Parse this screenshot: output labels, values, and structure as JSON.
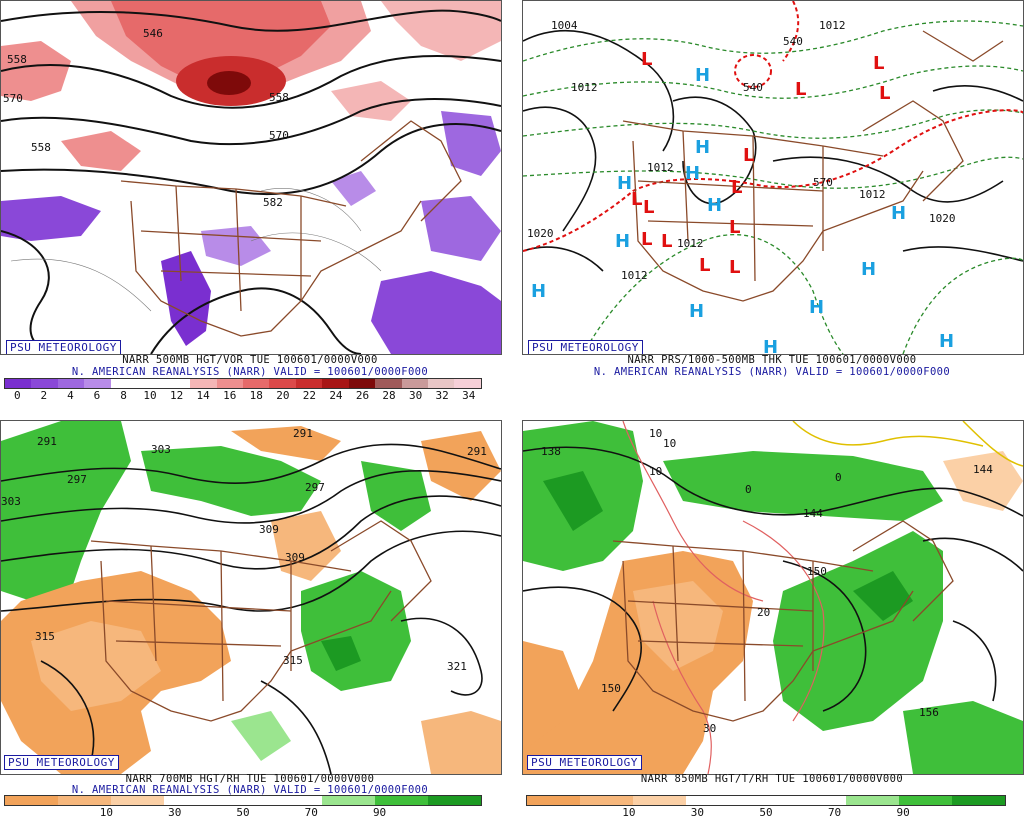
{
  "panels": [
    {
      "id": "p500",
      "badge": "PSU METEOROLOGY",
      "caption1": "NARR 500MB HGT/VOR TUE 100601/0000V000",
      "caption2": "N. AMERICAN REANALYSIS (NARR) VALID = 100601/0000F000",
      "contour_labels": [
        "558",
        "546",
        "558",
        "570",
        "582",
        "570",
        "558"
      ],
      "colorbar": {
        "colors": [
          "#7a2fd0",
          "#8a48d8",
          "#9e68e0",
          "#b88ce8",
          "#ffffff",
          "#ffffff",
          "#ffffff",
          "#f4b6b6",
          "#ee8f8f",
          "#e66a6a",
          "#dc4a4a",
          "#c92d2d",
          "#a81515",
          "#7e0a0a",
          "#a05a5a",
          "#c99a9a",
          "#e8c6c6",
          "#f6d0d8"
        ],
        "ticks": [
          "0",
          "2",
          "4",
          "6",
          "8",
          "10",
          "12",
          "14",
          "16",
          "18",
          "20",
          "22",
          "24",
          "26",
          "28",
          "30",
          "32",
          "34"
        ]
      }
    },
    {
      "id": "pprs",
      "badge": "PSU METEOROLOGY",
      "caption1": "NARR PRS/1000-500MB THK TUE 100601/0000V000",
      "caption2": "N. AMERICAN REANALYSIS (NARR) VALID = 100601/0000F000",
      "contour_labels": [
        "1004",
        "1012",
        "1012",
        "1012",
        "1012",
        "1020",
        "1020",
        "1012",
        "1012",
        "540",
        "540",
        "570"
      ],
      "highs": 13,
      "lows": 13,
      "high_label": "H",
      "low_label": "L"
    },
    {
      "id": "p700",
      "badge": "PSU METEOROLOGY",
      "caption1": "NARR 700MB HGT/RH TUE 100601/0000V000",
      "caption2": "N. AMERICAN REANALYSIS (NARR) VALID = 100601/0000F000",
      "contour_labels": [
        "291",
        "303",
        "297",
        "291",
        "297",
        "309",
        "303",
        "309",
        "315",
        "315",
        "321",
        "291"
      ],
      "colorbar": {
        "colors": [
          "#f2a35a",
          "#f6b77c",
          "#fbd0a6",
          "#ffffff",
          "#ffffff",
          "#ffffff",
          "#9be58f",
          "#3fbf3a",
          "#1c9a22"
        ],
        "ticks": [
          "10",
          "30",
          "50",
          "70",
          "90"
        ]
      }
    },
    {
      "id": "p850",
      "badge": "PSU METEOROLOGY",
      "caption1": "NARR 850MB HGT/T/RH TUE 100601/0000V000",
      "caption2": "",
      "contour_labels": [
        "138",
        "144",
        "150",
        "150",
        "156",
        "10",
        "10",
        "10",
        "0",
        "0",
        "20",
        "30",
        "144"
      ],
      "colorbar": {
        "colors": [
          "#f2a35a",
          "#f6b77c",
          "#fbd0a6",
          "#ffffff",
          "#ffffff",
          "#ffffff",
          "#9be58f",
          "#3fbf3a",
          "#1c9a22"
        ],
        "ticks": [
          "10",
          "30",
          "50",
          "70",
          "90"
        ]
      }
    }
  ]
}
